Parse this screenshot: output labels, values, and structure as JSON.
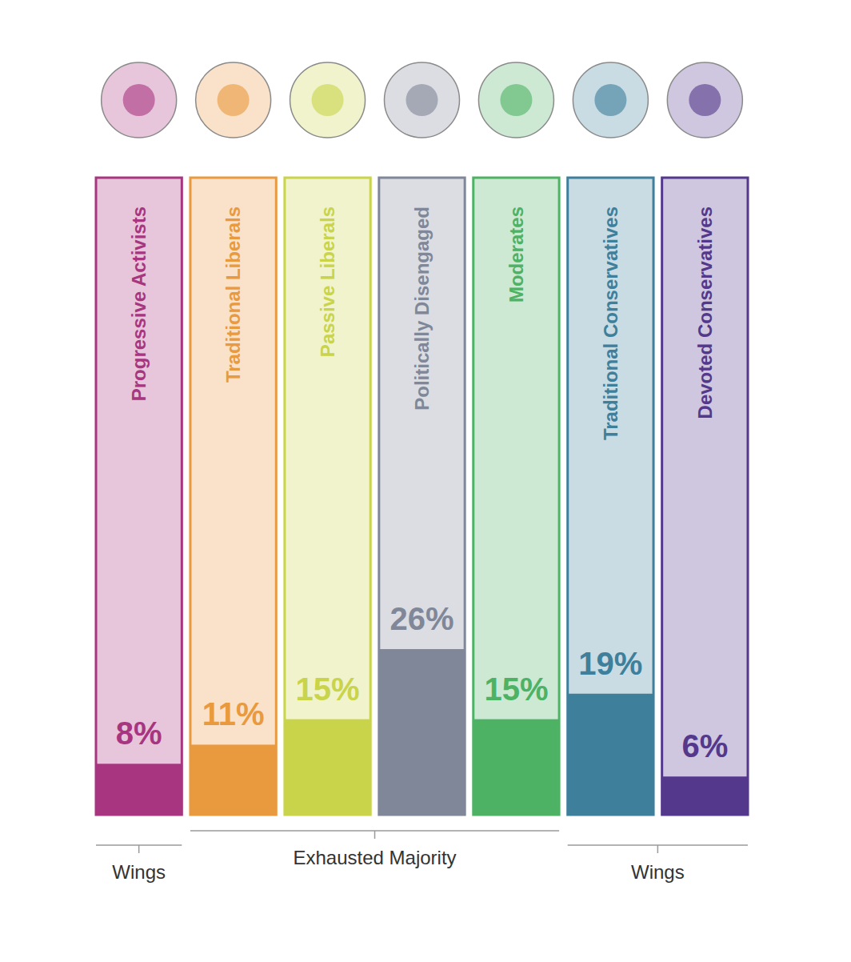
{
  "chart_data": {
    "type": "bar",
    "categories": [
      "Progressive Activists",
      "Traditional Liberals",
      "Passive Liberals",
      "Politically Disengaged",
      "Moderates",
      "Traditional Conservatives",
      "Devoted Conservatives"
    ],
    "values": [
      8,
      11,
      15,
      26,
      15,
      19,
      6
    ],
    "value_labels": [
      "8%",
      "11%",
      "15%",
      "26%",
      "15%",
      "19%",
      "6%"
    ],
    "colors": [
      "#a8357f",
      "#e9993e",
      "#c9d44a",
      "#7f8798",
      "#4eb264",
      "#3e7f9c",
      "#54388c"
    ],
    "ylim": [
      0,
      100
    ],
    "data_labels": true,
    "tick_labels": false,
    "groups": [
      {
        "name": "Wings",
        "members": [
          "Progressive Activists"
        ]
      },
      {
        "name": "Exhausted Majority",
        "members": [
          "Traditional Liberals",
          "Passive Liberals",
          "Politically Disengaged",
          "Moderates"
        ]
      },
      {
        "name": "Wings",
        "members": [
          "Traditional Conservatives",
          "Devoted Conservatives"
        ]
      }
    ]
  }
}
